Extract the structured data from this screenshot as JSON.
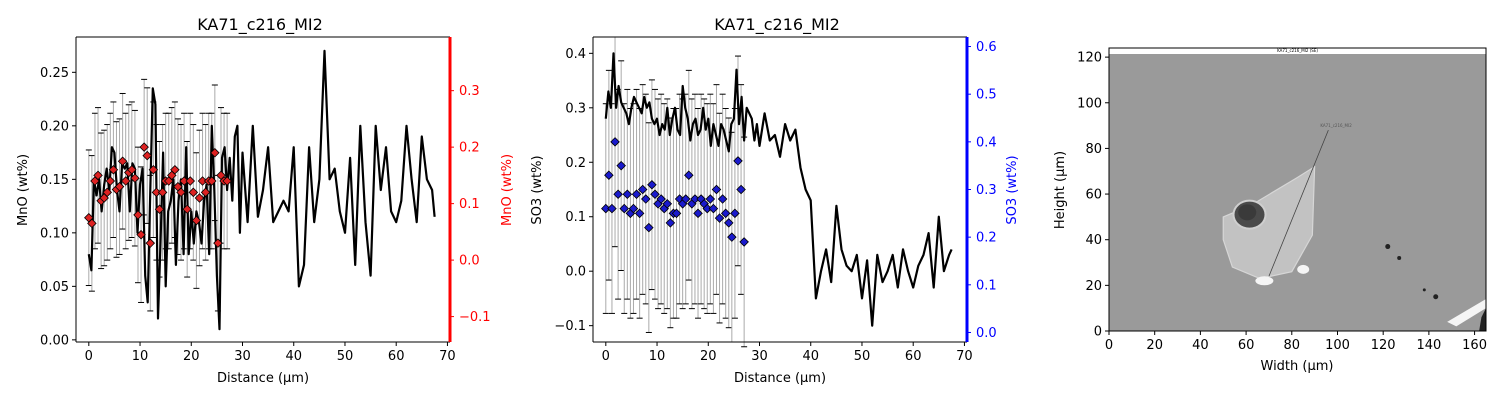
{
  "chart_data": [
    {
      "type": "line",
      "title": "KA71_c216_MI2",
      "xlabel": "Distance (µm)",
      "ylabel": "MnO (wt%)",
      "y2label": "MnO (wt%)",
      "xlim": [
        -2.5,
        70.5
      ],
      "ylim": [
        -0.002,
        0.283
      ],
      "y2lim": [
        -0.145,
        0.395
      ],
      "xticks": [
        0,
        10,
        20,
        30,
        40,
        50,
        60,
        70
      ],
      "yticks": [
        0.0,
        0.05,
        0.1,
        0.15,
        0.2,
        0.25
      ],
      "y2ticks": [
        -0.1,
        0.0,
        0.1,
        0.2,
        0.3
      ],
      "grid": false,
      "colors": {
        "line": "#000000",
        "marker": "#dd2222",
        "axis2": "#ff0000",
        "errorbar": "#aaaaaa"
      },
      "series": [
        {
          "axis": "left",
          "style": "line",
          "x": [
            0,
            0.5,
            1,
            1.5,
            2,
            2.5,
            3,
            3.5,
            4,
            4.5,
            5,
            5.5,
            6,
            6.5,
            7,
            7.5,
            8,
            8.5,
            9,
            9.5,
            10,
            10.5,
            11,
            11.5,
            12,
            12.5,
            13,
            13.5,
            14,
            14.5,
            15,
            15.5,
            16,
            16.5,
            17,
            17.5,
            18,
            18.5,
            19,
            19.5,
            20,
            20.5,
            21,
            21.5,
            22,
            22.5,
            23,
            23.5,
            24,
            24.5,
            25,
            25.5,
            26,
            26.5,
            27,
            27.5,
            28,
            28.5,
            29,
            29.5,
            30,
            31,
            32,
            33,
            34,
            35,
            36,
            37,
            38,
            39,
            40,
            41,
            42,
            43,
            44,
            45,
            46,
            47,
            48,
            49,
            50,
            51,
            52,
            53,
            54,
            55,
            56,
            57,
            58,
            59,
            60,
            61,
            62,
            63,
            64,
            65,
            66,
            67,
            67.5
          ],
          "y": [
            0.08,
            0.065,
            0.15,
            0.135,
            0.15,
            0.12,
            0.145,
            0.16,
            0.14,
            0.18,
            0.175,
            0.14,
            0.12,
            0.165,
            0.16,
            0.165,
            0.12,
            0.165,
            0.16,
            0.1,
            0.145,
            0.16,
            0.06,
            0.035,
            0.14,
            0.235,
            0.22,
            0.02,
            0.09,
            0.175,
            0.05,
            0.12,
            0.13,
            0.15,
            0.07,
            0.13,
            0.15,
            0.08,
            0.18,
            0.08,
            0.12,
            0.09,
            0.12,
            0.11,
            0.09,
            0.13,
            0.145,
            0.08,
            0.2,
            0.14,
            0.06,
            0.01,
            0.17,
            0.18,
            0.14,
            0.17,
            0.13,
            0.19,
            0.2,
            0.1,
            0.175,
            0.11,
            0.2,
            0.115,
            0.14,
            0.18,
            0.11,
            0.12,
            0.13,
            0.12,
            0.18,
            0.05,
            0.07,
            0.18,
            0.11,
            0.15,
            0.27,
            0.15,
            0.16,
            0.12,
            0.1,
            0.17,
            0.07,
            0.2,
            0.11,
            0.06,
            0.2,
            0.14,
            0.18,
            0.12,
            0.11,
            0.13,
            0.2,
            0.15,
            0.11,
            0.19,
            0.15,
            0.14,
            0.115
          ]
        },
        {
          "axis": "right",
          "style": "marker-errorbar",
          "x": [
            0,
            0.6,
            1.2,
            1.8,
            2.4,
            3.0,
            3.6,
            4.2,
            4.8,
            5.4,
            6.0,
            6.6,
            7.2,
            7.8,
            8.4,
            9.0,
            9.6,
            10.2,
            10.8,
            11.4,
            12.0,
            12.6,
            13.2,
            13.8,
            14.4,
            15.0,
            15.6,
            16.2,
            16.8,
            17.4,
            18.0,
            18.6,
            19.2,
            19.8,
            20.4,
            21.0,
            21.6,
            22.2,
            22.8,
            23.4,
            24.0,
            24.6,
            25.2,
            25.8,
            26.4,
            27.0
          ],
          "y": [
            0.075,
            0.065,
            0.14,
            0.15,
            0.105,
            0.11,
            0.12,
            0.14,
            0.16,
            0.125,
            0.13,
            0.175,
            0.14,
            0.155,
            0.16,
            0.145,
            0.08,
            0.045,
            0.2,
            0.185,
            0.03,
            0.16,
            0.12,
            0.09,
            0.12,
            0.14,
            0.14,
            0.15,
            0.16,
            0.13,
            0.12,
            0.14,
            0.09,
            0.14,
            0.12,
            0.07,
            0.11,
            0.14,
            0.12,
            0.14,
            0.14,
            0.19,
            0.03,
            0.15,
            0.14,
            0.14
          ],
          "yerr": [
            0.12,
            0.12,
            0.12,
            0.12,
            0.12,
            0.12,
            0.12,
            0.12,
            0.12,
            0.12,
            0.12,
            0.12,
            0.12,
            0.12,
            0.12,
            0.12,
            0.12,
            0.12,
            0.12,
            0.12,
            0.12,
            0.12,
            0.12,
            0.12,
            0.12,
            0.12,
            0.12,
            0.12,
            0.12,
            0.12,
            0.12,
            0.12,
            0.12,
            0.12,
            0.12,
            0.12,
            0.12,
            0.12,
            0.12,
            0.12,
            0.12,
            0.12,
            0.12,
            0.12,
            0.12,
            0.12
          ]
        }
      ]
    },
    {
      "type": "line",
      "title": "KA71_c216_MI2",
      "xlabel": "Distance (µm)",
      "ylabel": "SO3 (wt%)",
      "y2label": "SO3 (wt%)",
      "xlim": [
        -2.5,
        70.5
      ],
      "ylim": [
        -0.13,
        0.43
      ],
      "y2lim": [
        -0.02,
        0.62
      ],
      "xticks": [
        0,
        10,
        20,
        30,
        40,
        50,
        60,
        70
      ],
      "yticks": [
        -0.1,
        0.0,
        0.1,
        0.2,
        0.3,
        0.4
      ],
      "y2ticks": [
        0.0,
        0.1,
        0.2,
        0.3,
        0.4,
        0.5,
        0.6
      ],
      "grid": false,
      "colors": {
        "line": "#000000",
        "marker": "#1a1acc",
        "axis2": "#0000ff",
        "errorbar": "#aaaaaa"
      },
      "series": [
        {
          "axis": "left",
          "style": "line",
          "x": [
            0,
            0.5,
            1,
            1.5,
            2,
            2.5,
            3,
            3.5,
            4,
            4.5,
            5,
            5.5,
            6,
            6.5,
            7,
            7.5,
            8,
            8.5,
            9,
            9.5,
            10,
            10.5,
            11,
            11.5,
            12,
            12.5,
            13,
            13.5,
            14,
            14.5,
            15,
            15.5,
            16,
            16.5,
            17,
            17.5,
            18,
            18.5,
            19,
            19.5,
            20,
            20.5,
            21,
            21.5,
            22,
            22.5,
            23,
            23.5,
            24,
            24.5,
            25,
            25.5,
            26,
            26.5,
            27,
            27.5,
            28,
            28.5,
            29,
            29.5,
            30,
            31,
            32,
            33,
            34,
            35,
            36,
            37,
            38,
            39,
            40,
            41,
            42,
            43,
            44,
            45,
            46,
            47,
            48,
            49,
            50,
            51,
            52,
            53,
            54,
            55,
            56,
            57,
            58,
            59,
            60,
            61,
            62,
            63,
            64,
            65,
            66,
            67,
            67.5
          ],
          "y": [
            0.28,
            0.33,
            0.3,
            0.4,
            0.3,
            0.34,
            0.31,
            0.3,
            0.29,
            0.27,
            0.3,
            0.32,
            0.31,
            0.3,
            0.29,
            0.32,
            0.3,
            0.31,
            0.28,
            0.27,
            0.28,
            0.25,
            0.27,
            0.26,
            0.3,
            0.25,
            0.28,
            0.3,
            0.26,
            0.25,
            0.34,
            0.3,
            0.28,
            0.24,
            0.27,
            0.28,
            0.25,
            0.26,
            0.3,
            0.26,
            0.28,
            0.23,
            0.27,
            0.25,
            0.23,
            0.27,
            0.26,
            0.24,
            0.22,
            0.27,
            0.28,
            0.37,
            0.27,
            0.32,
            0.24,
            0.3,
            0.29,
            0.28,
            0.24,
            0.27,
            0.23,
            0.29,
            0.24,
            0.25,
            0.21,
            0.27,
            0.24,
            0.26,
            0.19,
            0.15,
            0.13,
            -0.05,
            0.0,
            0.04,
            -0.02,
            0.12,
            0.04,
            0.01,
            0.0,
            0.03,
            -0.05,
            0.02,
            -0.1,
            0.03,
            -0.02,
            0.0,
            0.03,
            -0.03,
            0.04,
            0.0,
            -0.03,
            0.01,
            0.03,
            0.07,
            -0.03,
            0.1,
            0.0,
            0.03,
            0.04
          ]
        },
        {
          "axis": "right",
          "style": "marker-errorbar",
          "x": [
            0,
            0.6,
            1.2,
            1.8,
            2.4,
            3.0,
            3.6,
            4.2,
            4.8,
            5.4,
            6.0,
            6.6,
            7.2,
            7.8,
            8.4,
            9.0,
            9.6,
            10.2,
            10.8,
            11.4,
            12.0,
            12.6,
            13.2,
            13.8,
            14.4,
            15.0,
            15.6,
            16.2,
            16.8,
            17.4,
            18.0,
            18.6,
            19.2,
            19.8,
            20.4,
            21.0,
            21.6,
            22.2,
            22.8,
            23.4,
            24.0,
            24.6,
            25.2,
            25.8,
            26.4,
            27.0
          ],
          "y": [
            0.26,
            0.33,
            0.26,
            0.4,
            0.29,
            0.35,
            0.26,
            0.29,
            0.25,
            0.26,
            0.29,
            0.25,
            0.3,
            0.28,
            0.22,
            0.31,
            0.29,
            0.27,
            0.28,
            0.26,
            0.27,
            0.23,
            0.25,
            0.25,
            0.28,
            0.27,
            0.28,
            0.33,
            0.27,
            0.28,
            0.25,
            0.28,
            0.27,
            0.26,
            0.28,
            0.26,
            0.3,
            0.24,
            0.28,
            0.25,
            0.23,
            0.2,
            0.25,
            0.36,
            0.3,
            0.19
          ],
          "yerr": [
            0.22,
            0.22,
            0.22,
            0.22,
            0.22,
            0.22,
            0.22,
            0.22,
            0.22,
            0.22,
            0.22,
            0.22,
            0.22,
            0.22,
            0.22,
            0.22,
            0.22,
            0.22,
            0.22,
            0.22,
            0.22,
            0.22,
            0.22,
            0.22,
            0.22,
            0.22,
            0.22,
            0.22,
            0.22,
            0.22,
            0.22,
            0.22,
            0.22,
            0.22,
            0.22,
            0.22,
            0.22,
            0.22,
            0.22,
            0.22,
            0.22,
            0.22,
            0.22,
            0.22,
            0.22,
            0.22
          ]
        }
      ]
    },
    {
      "type": "image",
      "xlabel": "Width (µm)",
      "ylabel": "Height (µm)",
      "xlim": [
        0,
        165
      ],
      "ylim": [
        0,
        124
      ],
      "xticks": [
        0,
        20,
        40,
        60,
        80,
        100,
        120,
        140,
        160
      ],
      "yticks": [
        0,
        20,
        40,
        60,
        80,
        100,
        120
      ],
      "image_caption": "KA71_c216_MI2 (SE)",
      "annotation": "KA71_c216_MI2",
      "colors": {
        "background": "#9a9a9a",
        "inclusion": "#c2c2c2",
        "bubble": "#3a3a3a",
        "bright_spot": "#f5f5f5",
        "dark_spot": "#222222"
      },
      "transect": {
        "start": [
          70,
          24
        ],
        "end": [
          96,
          88
        ]
      }
    }
  ]
}
